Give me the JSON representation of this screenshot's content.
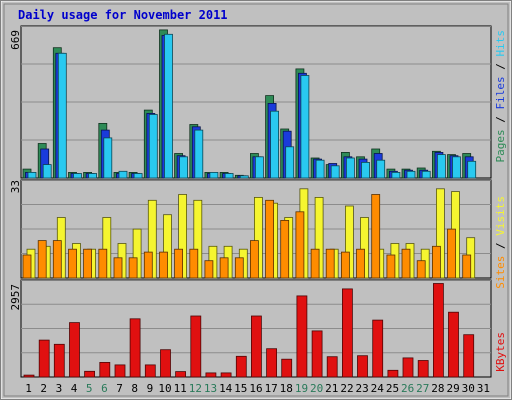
{
  "title": "Daily usage for November 2011",
  "colors": {
    "pages": "#2e8b57",
    "files": "#1a3bdb",
    "hits": "#29c9f0",
    "visits": "#f5f530",
    "sites": "#ff8c00",
    "kbytes": "#e01010",
    "panel_bg": "#c0c0c0",
    "weekend_label": "#2a7a5a"
  },
  "right_labels": {
    "top": {
      "pages": "Pages",
      "files": "Files",
      "hits": "Hits",
      "sep": " / "
    },
    "middle": {
      "sites": "Sites",
      "visits": "Visits",
      "sep": " / "
    },
    "bottom": {
      "kbytes": "KBytes"
    }
  },
  "chart_data": [
    {
      "type": "bar",
      "title": "Daily usage for November 2011",
      "ymax_label": "669",
      "ylim": [
        0,
        669
      ],
      "categories": [
        "1",
        "2",
        "3",
        "4",
        "5",
        "6",
        "7",
        "8",
        "9",
        "10",
        "11",
        "12",
        "13",
        "14",
        "15",
        "16",
        "17",
        "18",
        "19",
        "20",
        "21",
        "22",
        "23",
        "24",
        "25",
        "26",
        "27",
        "28",
        "29",
        "30",
        "31"
      ],
      "weekend_days": [
        "5",
        "6",
        "12",
        "13",
        "19",
        "20",
        "26",
        "27"
      ],
      "series": [
        {
          "name": "Pages",
          "values": [
            40,
            155,
            585,
            25,
            25,
            245,
            25,
            25,
            305,
            665,
            110,
            240,
            25,
            25,
            12,
            110,
            370,
            220,
            490,
            90,
            60,
            115,
            95,
            130,
            40,
            40,
            45,
            120,
            105,
            110,
            0
          ]
        },
        {
          "name": "Files",
          "values": [
            25,
            130,
            560,
            20,
            20,
            215,
            20,
            20,
            290,
            640,
            100,
            230,
            20,
            20,
            10,
            95,
            335,
            210,
            470,
            85,
            65,
            95,
            85,
            110,
            30,
            35,
            35,
            115,
            100,
            95,
            0
          ]
        },
        {
          "name": "Hits",
          "values": [
            25,
            60,
            560,
            20,
            20,
            180,
            30,
            20,
            285,
            645,
            95,
            215,
            25,
            20,
            10,
            95,
            300,
            140,
            460,
            80,
            55,
            90,
            70,
            80,
            25,
            30,
            30,
            105,
            95,
            75,
            0
          ]
        }
      ]
    },
    {
      "type": "bar",
      "ymax_label": "33",
      "ylim": [
        0,
        33
      ],
      "categories": [
        "1",
        "2",
        "3",
        "4",
        "5",
        "6",
        "7",
        "8",
        "9",
        "10",
        "11",
        "12",
        "13",
        "14",
        "15",
        "16",
        "17",
        "18",
        "19",
        "20",
        "21",
        "22",
        "23",
        "24",
        "25",
        "26",
        "27",
        "28",
        "29",
        "30",
        "31"
      ],
      "series": [
        {
          "name": "Visits",
          "values": [
            10,
            11,
            21,
            12,
            10,
            21,
            12,
            17,
            27,
            22,
            29,
            27,
            11,
            11,
            10,
            28,
            26,
            21,
            31,
            28,
            10,
            25,
            21,
            10,
            12,
            12,
            10,
            31,
            30,
            14,
            0
          ]
        },
        {
          "name": "Sites",
          "values": [
            8,
            13,
            13,
            10,
            10,
            10,
            7,
            7,
            9,
            9,
            10,
            10,
            6,
            7,
            7,
            13,
            27,
            20,
            23,
            10,
            10,
            9,
            10,
            29,
            8,
            10,
            6,
            11,
            17,
            8,
            0
          ]
        }
      ]
    },
    {
      "type": "bar",
      "ymax_label": "2957",
      "ylim": [
        0,
        2957
      ],
      "categories": [
        "1",
        "2",
        "3",
        "4",
        "5",
        "6",
        "7",
        "8",
        "9",
        "10",
        "11",
        "12",
        "13",
        "14",
        "15",
        "16",
        "17",
        "18",
        "19",
        "20",
        "21",
        "22",
        "23",
        "24",
        "25",
        "26",
        "27",
        "28",
        "29",
        "30",
        "31"
      ],
      "series": [
        {
          "name": "KBytes",
          "values": [
            60,
            1160,
            1030,
            1710,
            180,
            460,
            380,
            1830,
            380,
            860,
            170,
            1920,
            130,
            130,
            650,
            1920,
            890,
            560,
            2550,
            1450,
            640,
            2770,
            670,
            1790,
            210,
            600,
            520,
            2940,
            2040,
            1330,
            0
          ]
        }
      ]
    }
  ]
}
